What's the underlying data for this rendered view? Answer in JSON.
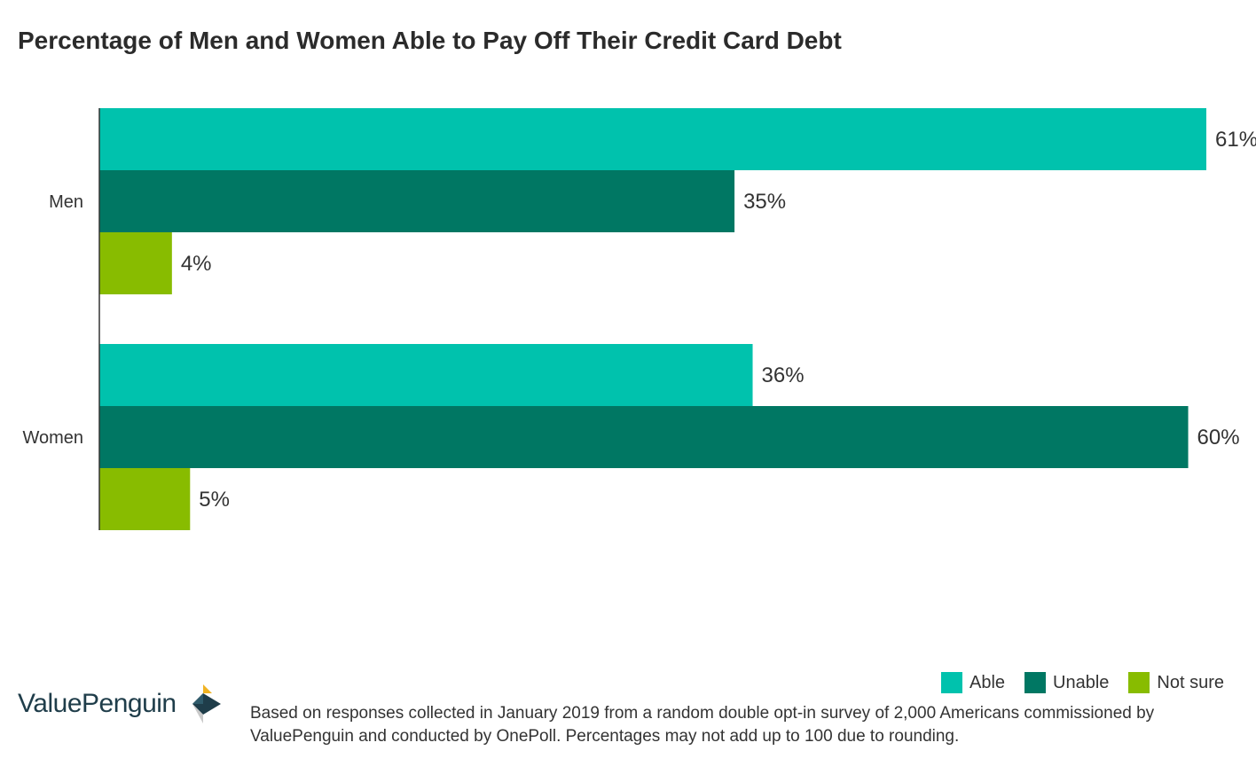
{
  "chart_data": {
    "type": "bar",
    "orientation": "horizontal",
    "title": "Percentage of Men and Women Able to Pay Off Their Credit Card Debt",
    "categories": [
      "Men",
      "Women"
    ],
    "series": [
      {
        "name": "Able",
        "values": [
          61,
          36
        ],
        "labels": [
          "61%",
          "36%"
        ],
        "color": "#00c2ad"
      },
      {
        "name": "Unable",
        "values": [
          35,
          60
        ],
        "labels": [
          "35%",
          "60%"
        ],
        "color": "#007763"
      },
      {
        "name": "Not sure",
        "values": [
          4,
          5
        ],
        "labels": [
          "4%",
          "5%"
        ],
        "color": "#88bc00"
      }
    ],
    "xlim": [
      0,
      61
    ],
    "grid": false,
    "legend_position": "bottom-right"
  },
  "brand": {
    "name": "ValuePenguin",
    "logo_icon": "valuepenguin-logo-icon"
  },
  "footnote": "Based on responses collected in January 2019 from a random double opt-in survey of 2,000 Americans commissioned by ValuePenguin and conducted by OnePoll. Percentages may not add up to 100 due to rounding."
}
